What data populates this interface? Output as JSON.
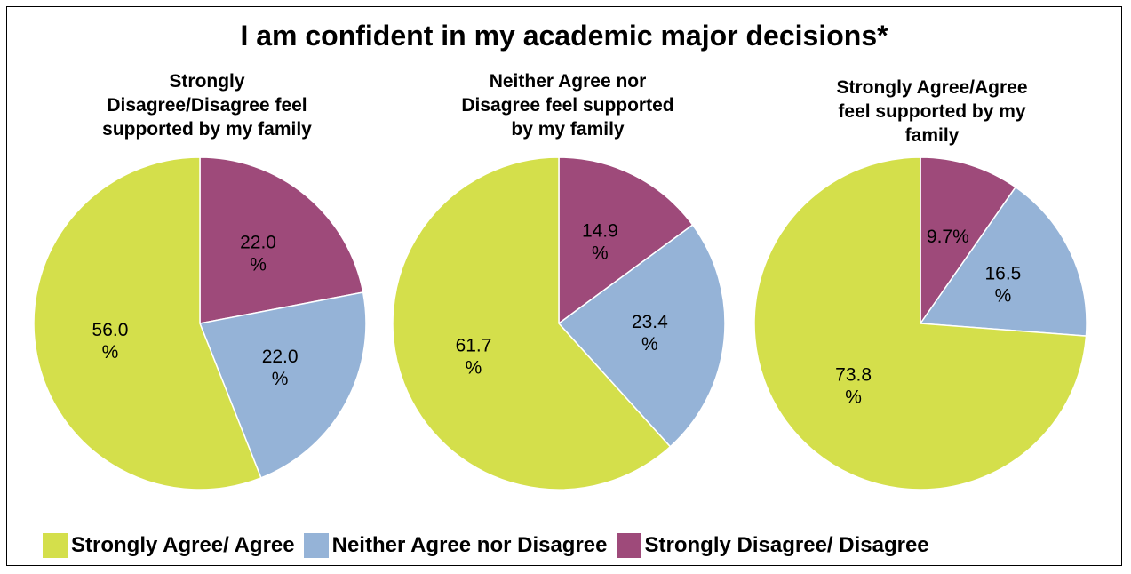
{
  "chart_data": {
    "type": "pie",
    "title": "I am confident in my academic major decisions*",
    "categories": [
      "Strongly Agree/ Agree",
      "Neither Agree nor Disagree",
      "Strongly Disagree/ Disagree"
    ],
    "colors": [
      "#d4df4b",
      "#95b3d7",
      "#9e4a7a"
    ],
    "legend_position": "bottom",
    "pies": [
      {
        "subtitle": "Strongly Disagree/Disagree feel supported by my family",
        "subtitle_lines": [
          "Strongly",
          "Disagree/Disagree feel",
          "supported by my family"
        ],
        "values": [
          56.0,
          22.0,
          22.0
        ],
        "labels": [
          "56.0\n%",
          "22.0\n%",
          "22.0\n%"
        ]
      },
      {
        "subtitle": "Neither Agree nor Disagree feel supported by my family",
        "subtitle_lines": [
          "Neither Agree nor",
          "Disagree feel supported",
          "by my family"
        ],
        "values": [
          61.7,
          23.4,
          14.9
        ],
        "labels": [
          "61.7\n%",
          "23.4\n%",
          "14.9\n%"
        ]
      },
      {
        "subtitle": "Strongly Agree/Agree feel supported by my family",
        "subtitle_lines": [
          "Strongly Agree/Agree",
          "feel supported by my",
          "family"
        ],
        "values": [
          73.8,
          16.5,
          9.7
        ],
        "labels": [
          "73.8\n%",
          "16.5\n%",
          "9.7%"
        ]
      }
    ]
  }
}
